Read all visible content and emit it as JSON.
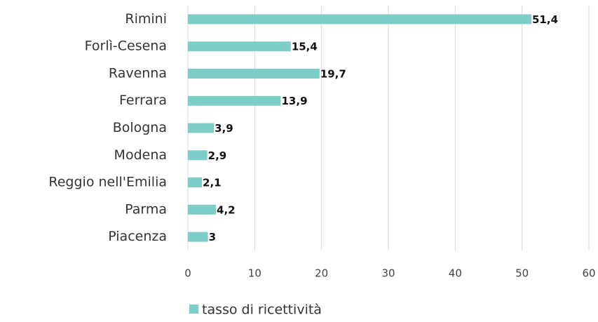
{
  "chart_data": {
    "type": "bar",
    "orientation": "horizontal",
    "categories": [
      "Rimini",
      "Forlì-Cesena",
      "Ravenna",
      "Ferrara",
      "Bologna",
      "Modena",
      "Reggio nell'Emilia",
      "Parma",
      "Piacenza"
    ],
    "series": [
      {
        "name": "tasso di ricettività",
        "color": "#7dcdc9",
        "values": [
          51.4,
          15.4,
          19.7,
          13.9,
          3.9,
          2.9,
          2.1,
          4.2,
          3
        ],
        "value_labels": [
          "51,4",
          "15,4",
          "19,7",
          "13,9",
          "3,9",
          "2,9",
          "2,1",
          "4,2",
          "3"
        ]
      }
    ],
    "xlim": [
      0,
      60
    ],
    "xticks": [
      0,
      10,
      20,
      30,
      40,
      50,
      60
    ],
    "grid": true,
    "legend": "bottom"
  }
}
